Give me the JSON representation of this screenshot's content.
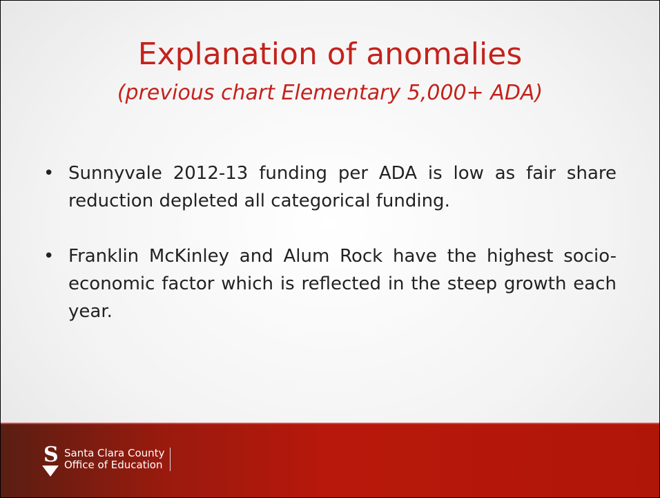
{
  "header": {
    "title": "Explanation of anomalies",
    "subtitle": "(previous chart Elementary 5,000+ ADA)"
  },
  "bullets": [
    "Sunnyvale 2012-13 funding per ADA is low as fair share reduction depleted all categorical funding.",
    "Franklin McKinley and Alum Rock have the highest socio-economic factor which is reflected in the steep growth each year."
  ],
  "footer": {
    "org_line1": "Santa Clara County",
    "org_line2": "Office of Education"
  }
}
